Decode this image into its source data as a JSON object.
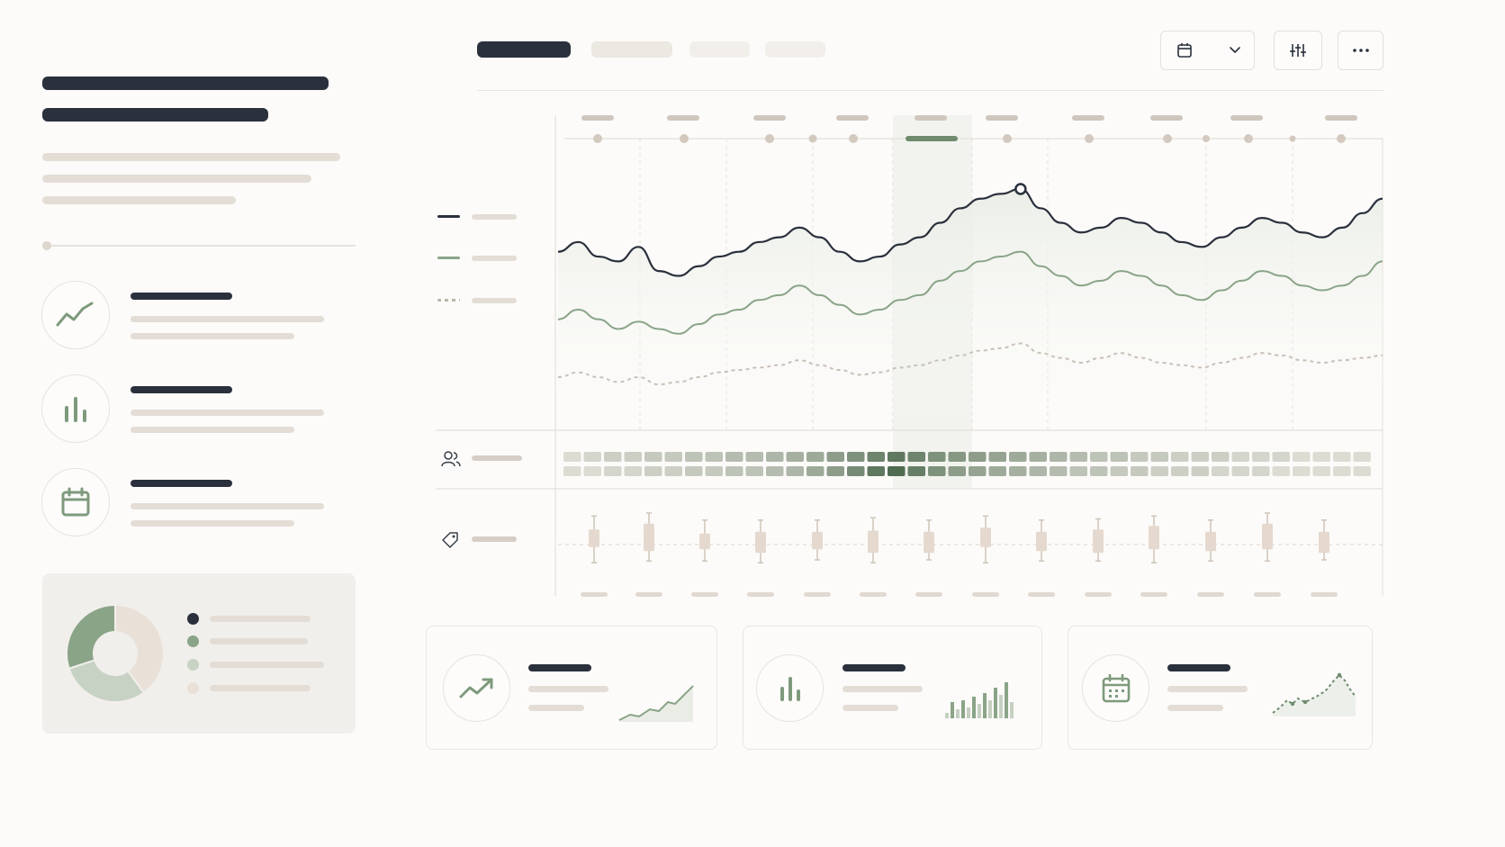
{
  "colors": {
    "dark": "#2a303c",
    "sage": "#8aa488",
    "beige": "#e3ddd6",
    "dashed": "#bdb4ab",
    "heat_low": "#ece8e2",
    "heat_high": "#4f6b50"
  },
  "toolbar": {
    "date_icon": "calendar-icon",
    "dropdown_icon": "chevron-down-icon",
    "filter_icon": "sliders-icon",
    "more_icon": "more-horizontal-icon"
  },
  "sidebar": {
    "features": [
      {
        "icon": "trend-line-icon"
      },
      {
        "icon": "bar-chart-icon"
      },
      {
        "icon": "calendar-icon"
      }
    ],
    "donut": {
      "shares": [
        0.4,
        0.3,
        0.3
      ]
    }
  },
  "chart_data": {
    "type": "line",
    "series": [
      {
        "values": [
          0.74,
          0.78,
          0.72,
          0.7,
          0.76,
          0.66,
          0.64,
          0.68,
          0.72,
          0.74,
          0.78,
          0.8,
          0.84,
          0.8,
          0.74,
          0.7,
          0.72,
          0.77,
          0.8,
          0.86,
          0.92,
          0.96,
          0.98,
          1.0,
          0.92,
          0.86,
          0.82,
          0.84,
          0.88,
          0.86,
          0.82,
          0.78,
          0.76,
          0.8,
          0.84,
          0.88,
          0.86,
          0.82,
          0.8,
          0.84,
          0.9,
          0.96
        ]
      },
      {
        "values": [
          0.46,
          0.5,
          0.46,
          0.42,
          0.45,
          0.42,
          0.4,
          0.44,
          0.48,
          0.5,
          0.54,
          0.56,
          0.6,
          0.56,
          0.52,
          0.48,
          0.5,
          0.54,
          0.56,
          0.62,
          0.66,
          0.7,
          0.72,
          0.74,
          0.68,
          0.64,
          0.6,
          0.62,
          0.66,
          0.64,
          0.6,
          0.56,
          0.54,
          0.58,
          0.62,
          0.66,
          0.64,
          0.6,
          0.58,
          0.6,
          0.64,
          0.7
        ]
      },
      {
        "values": [
          0.22,
          0.24,
          0.22,
          0.2,
          0.22,
          0.19,
          0.2,
          0.22,
          0.24,
          0.25,
          0.26,
          0.27,
          0.29,
          0.27,
          0.25,
          0.23,
          0.24,
          0.26,
          0.27,
          0.29,
          0.31,
          0.33,
          0.34,
          0.36,
          0.32,
          0.3,
          0.28,
          0.3,
          0.32,
          0.3,
          0.28,
          0.27,
          0.26,
          0.28,
          0.3,
          0.32,
          0.31,
          0.29,
          0.28,
          0.29,
          0.3,
          0.31
        ]
      }
    ],
    "heatmap": {
      "row1": [
        0.1,
        0.15,
        0.2,
        0.2,
        0.25,
        0.25,
        0.3,
        0.3,
        0.35,
        0.35,
        0.4,
        0.45,
        0.5,
        0.6,
        0.7,
        0.8,
        0.9,
        0.8,
        0.7,
        0.65,
        0.6,
        0.55,
        0.5,
        0.45,
        0.4,
        0.35,
        0.3,
        0.3,
        0.25,
        0.25,
        0.2,
        0.2,
        0.2,
        0.15,
        0.15,
        0.15,
        0.1,
        0.1,
        0.1,
        0.1
      ],
      "row2": [
        0.1,
        0.1,
        0.15,
        0.15,
        0.2,
        0.2,
        0.25,
        0.25,
        0.3,
        0.3,
        0.35,
        0.4,
        0.5,
        0.6,
        0.75,
        0.9,
        1.0,
        0.85,
        0.7,
        0.6,
        0.55,
        0.5,
        0.45,
        0.4,
        0.35,
        0.3,
        0.3,
        0.25,
        0.25,
        0.2,
        0.2,
        0.2,
        0.15,
        0.15,
        0.15,
        0.1,
        0.1,
        0.1,
        0.1,
        0.1
      ]
    },
    "boxes": [
      {
        "low": 0.15,
        "q1": 0.42,
        "q3": 0.72,
        "high": 0.95
      },
      {
        "low": 0.18,
        "q1": 0.35,
        "q3": 0.82,
        "high": 1.0
      },
      {
        "low": 0.18,
        "q1": 0.38,
        "q3": 0.65,
        "high": 0.88
      },
      {
        "low": 0.15,
        "q1": 0.32,
        "q3": 0.68,
        "high": 0.88
      },
      {
        "low": 0.2,
        "q1": 0.38,
        "q3": 0.68,
        "high": 0.88
      },
      {
        "low": 0.15,
        "q1": 0.32,
        "q3": 0.7,
        "high": 0.92
      },
      {
        "low": 0.2,
        "q1": 0.32,
        "q3": 0.68,
        "high": 0.88
      },
      {
        "low": 0.15,
        "q1": 0.42,
        "q3": 0.75,
        "high": 0.95
      },
      {
        "low": 0.18,
        "q1": 0.35,
        "q3": 0.68,
        "high": 0.88
      },
      {
        "low": 0.18,
        "q1": 0.32,
        "q3": 0.72,
        "high": 0.9
      },
      {
        "low": 0.15,
        "q1": 0.38,
        "q3": 0.78,
        "high": 0.95
      },
      {
        "low": 0.18,
        "q1": 0.35,
        "q3": 0.68,
        "high": 0.88
      },
      {
        "low": 0.18,
        "q1": 0.38,
        "q3": 0.82,
        "high": 1.0
      },
      {
        "low": 0.2,
        "q1": 0.32,
        "q3": 0.68,
        "high": 0.88
      }
    ]
  },
  "cards": [
    {
      "icon": "trending-up-icon",
      "spark": "area"
    },
    {
      "icon": "bar-chart-icon",
      "spark": "bars"
    },
    {
      "icon": "calendar-grid-icon",
      "spark": "peak"
    }
  ]
}
